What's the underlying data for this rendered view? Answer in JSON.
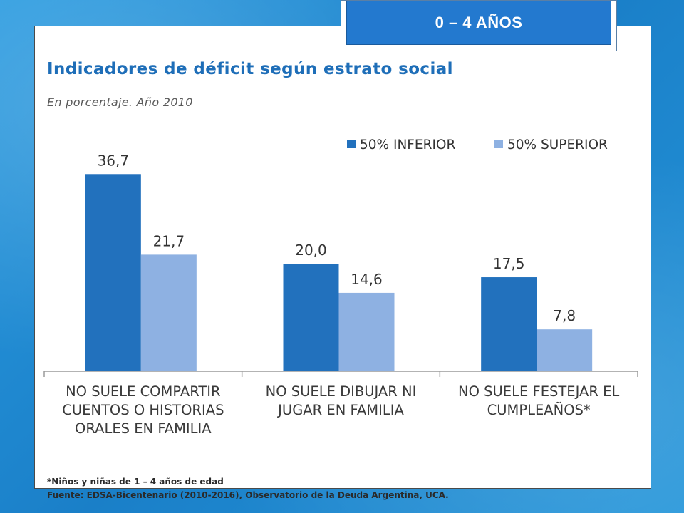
{
  "header": {
    "tag": "0 – 4 AÑOS"
  },
  "chart_data": {
    "type": "bar",
    "title": "Indicadores de déficit según estrato social",
    "subtitle": "En porcentaje. Año 2010",
    "categories": [
      [
        "NO SUELE COMPARTIR",
        "CUENTOS O HISTORIAS",
        "ORALES EN FAMILIA"
      ],
      [
        "NO SUELE DIBUJAR NI",
        "JUGAR EN FAMILIA"
      ],
      [
        "NO SUELE FESTEJAR EL",
        "CUMPLEAÑOS*"
      ]
    ],
    "series": [
      {
        "name": "50% INFERIOR",
        "values": [
          36.7,
          20.0,
          17.5
        ],
        "labels": [
          "36,7",
          "20,0",
          "17,5"
        ],
        "color": "#2271bd"
      },
      {
        "name": "50% SUPERIOR",
        "values": [
          21.7,
          14.6,
          7.8
        ],
        "labels": [
          "21,7",
          "14,6",
          "7,8"
        ],
        "color": "#8eb1e2"
      }
    ],
    "ylim": [
      0,
      40
    ],
    "grid": false,
    "legend": "top-right",
    "footnote": "*Niños y niñas de 1 – 4 años de edad",
    "source": "Fuente: EDSA-Bicentenario (2010-2016), Observatorio de la Deuda Argentina, UCA."
  }
}
